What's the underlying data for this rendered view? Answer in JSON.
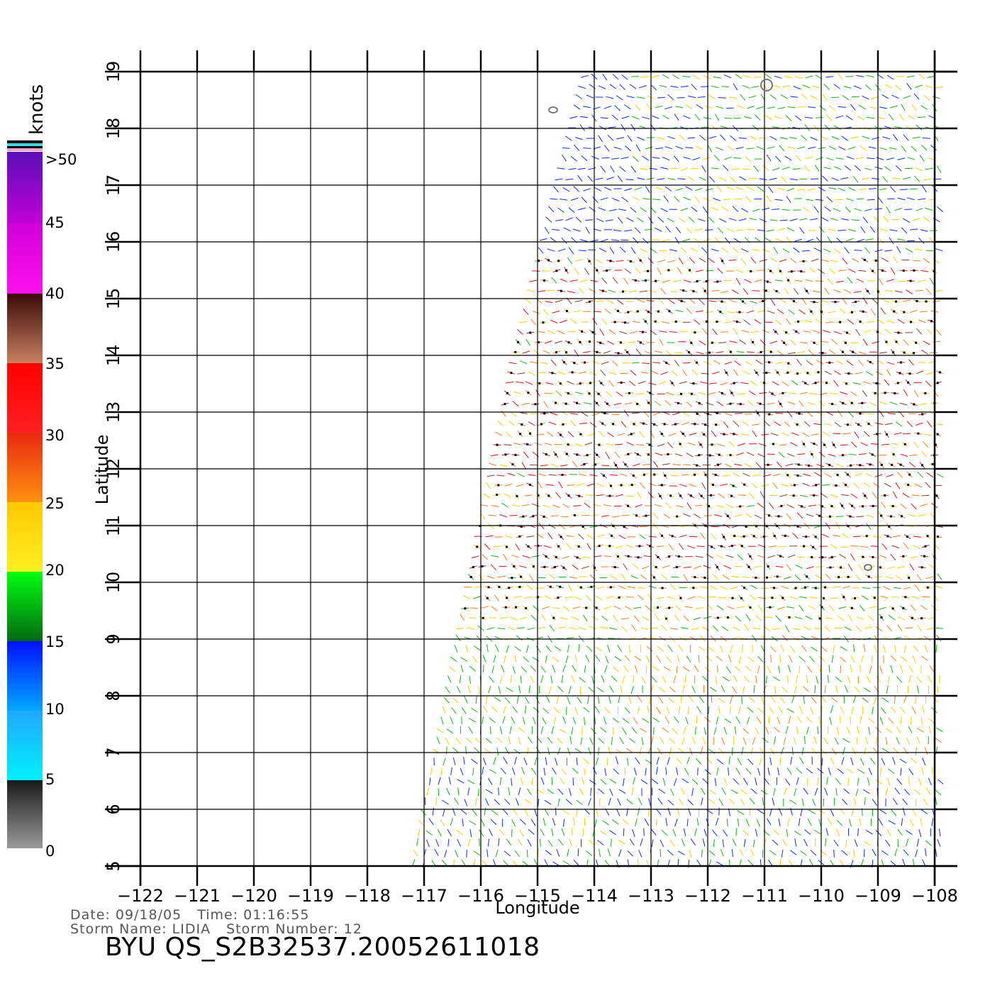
{
  "map": {
    "longitude_ticks": [
      "-122",
      "-121",
      "-120",
      "-119",
      "-118",
      "-117",
      "-116",
      "-115",
      "-114",
      "-113",
      "-112",
      "-111",
      "-110",
      "-109",
      "-108"
    ],
    "latitude_ticks": [
      "5",
      "6",
      "7",
      "8",
      "9",
      "10",
      "11",
      "12",
      "13",
      "14",
      "15",
      "16",
      "17",
      "18",
      "19"
    ],
    "xlabel": "Longitude",
    "ylabel": "Latitude",
    "lon_range": [
      -122,
      -108
    ],
    "lat_range": [
      5,
      19
    ],
    "grid": true
  },
  "colorbar": {
    "title": "knots",
    "labels": [
      ">50",
      "45",
      "40",
      "35",
      "30",
      "25",
      "20",
      "15",
      "10",
      "5",
      "0"
    ],
    "segments": [
      {
        "range": "45-50",
        "color": "#7a10c8"
      },
      {
        "range": "40-45",
        "color": "#e010e0"
      },
      {
        "range": "35-40",
        "color": "#8a4a30"
      },
      {
        "range": "30-35",
        "color": "#ff1010"
      },
      {
        "range": "25-30",
        "color": "#ff7010"
      },
      {
        "range": "20-25",
        "color": "#ffd000"
      },
      {
        "range": "15-20",
        "color": "#00c800"
      },
      {
        "range": "10-15",
        "color": "#0030ff"
      },
      {
        "range": "5-10",
        "color": "#00c8ff"
      },
      {
        "range": "0-5",
        "color": "#555555"
      }
    ]
  },
  "info": {
    "date": "Date: 09/18/05",
    "time": "Time: 01:16:55",
    "storm_name": "Storm Name: LIDIA",
    "storm_number": "Storm Number: 12"
  },
  "title": "BYU QS_S2B32537.20052611018"
}
